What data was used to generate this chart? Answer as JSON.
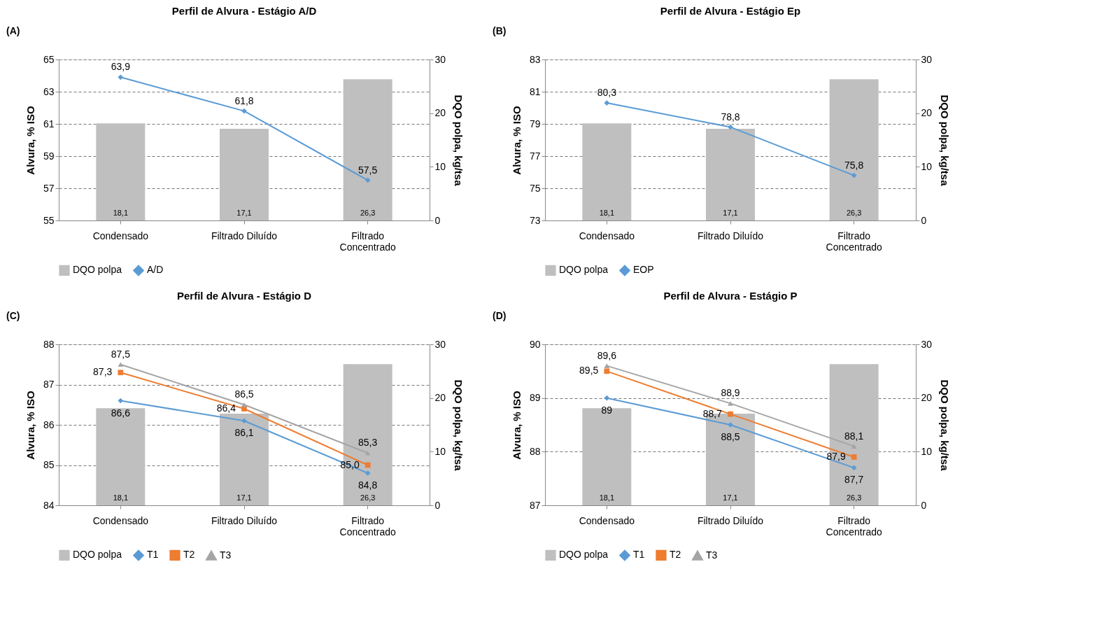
{
  "chart_data": [
    {
      "type": "line",
      "title": "Perfil de Alvura - Estágio A/D",
      "annotations": [
        "(A)"
      ],
      "ylabel": "Alvura, % ISO",
      "y2label": "DQO polpa, kg/tsa",
      "categories": [
        "Condensado",
        "Filtrado Diluído",
        "Filtrado\nConcentrado"
      ],
      "ylim": [
        55,
        65
      ],
      "yticks": [
        55,
        57,
        59,
        61,
        63,
        65
      ],
      "y2lim": [
        0,
        30
      ],
      "y2ticks": [
        0,
        10,
        20,
        30
      ],
      "grid": "y",
      "legend": "bottom",
      "series": [
        {
          "name": "DQO polpa",
          "type": "bar",
          "axis": "y2",
          "color": "#bfbfbf",
          "values": [
            18.1,
            17.1,
            26.3
          ],
          "value_labels": [
            "18,1",
            "17,1",
            "26,3"
          ]
        },
        {
          "name": "A/D",
          "marker": "diamond",
          "color": "#5b9bd5",
          "values": [
            63.9,
            61.8,
            57.5
          ],
          "value_labels": [
            "63,9",
            "61,8",
            "57,5"
          ]
        }
      ]
    },
    {
      "type": "line",
      "title": "Perfil de Alvura - Estágio Ep",
      "annotations": [
        "(B)"
      ],
      "ylabel": "Alvura, % ISO",
      "y2label": "DQO polpa, kg/tsa",
      "categories": [
        "Condensado",
        "Filtrado Diluído",
        "Filtrado\nConcentrado"
      ],
      "ylim": [
        73,
        83
      ],
      "yticks": [
        73,
        75,
        77,
        79,
        81,
        83
      ],
      "y2lim": [
        0,
        30
      ],
      "y2ticks": [
        0,
        10,
        20,
        30
      ],
      "grid": "y",
      "legend": "bottom",
      "series": [
        {
          "name": "DQO polpa",
          "type": "bar",
          "axis": "y2",
          "color": "#bfbfbf",
          "values": [
            18.1,
            17.1,
            26.3
          ],
          "value_labels": [
            "18,1",
            "17,1",
            "26,3"
          ]
        },
        {
          "name": "EOP",
          "marker": "diamond",
          "color": "#5b9bd5",
          "values": [
            80.3,
            78.8,
            75.8
          ],
          "value_labels": [
            "80,3",
            "78,8",
            "75,8"
          ]
        }
      ]
    },
    {
      "type": "line",
      "title": "Perfil de Alvura - Estágio D",
      "annotations": [
        "(C)"
      ],
      "ylabel": "Alvura, % ISO",
      "y2label": "DQO polpa, kg/tsa",
      "categories": [
        "Condensado",
        "Filtrado Diluído",
        "Filtrado\nConcentrado"
      ],
      "ylim": [
        84,
        88
      ],
      "yticks": [
        84,
        85,
        86,
        87,
        88
      ],
      "y2lim": [
        0,
        30
      ],
      "y2ticks": [
        0,
        10,
        20,
        30
      ],
      "grid": "y",
      "legend": "bottom",
      "series": [
        {
          "name": "DQO polpa",
          "type": "bar",
          "axis": "y2",
          "color": "#bfbfbf",
          "values": [
            18.1,
            17.1,
            26.3
          ],
          "value_labels": [
            "18,1",
            "17,1",
            "26,3"
          ]
        },
        {
          "name": "T1",
          "marker": "diamond",
          "color": "#5b9bd5",
          "values": [
            86.6,
            86.1,
            84.8
          ],
          "value_labels": [
            "86,6",
            "86,1",
            "84,8"
          ]
        },
        {
          "name": "T2",
          "marker": "square",
          "color": "#ed7d31",
          "values": [
            87.3,
            86.4,
            85.0
          ],
          "value_labels": [
            "87,3",
            "86,4",
            "85,0"
          ]
        },
        {
          "name": "T3",
          "marker": "triangle",
          "color": "#a5a5a5",
          "values": [
            87.5,
            86.5,
            85.3
          ],
          "value_labels": [
            "87,5",
            "86,5",
            "85,3"
          ]
        }
      ]
    },
    {
      "type": "line",
      "title": "Perfil de Alvura - Estágio P",
      "annotations": [
        "(D)"
      ],
      "ylabel": "Alvura, % ISO",
      "y2label": "DQO polpa, kg/tsa",
      "categories": [
        "Condensado",
        "Filtrado Diluído",
        "Filtrado\nConcentrado"
      ],
      "ylim": [
        87,
        90
      ],
      "yticks": [
        87,
        88,
        89,
        90
      ],
      "y2lim": [
        0,
        30
      ],
      "y2ticks": [
        0,
        10,
        20,
        30
      ],
      "grid": "y",
      "legend": "bottom",
      "series": [
        {
          "name": "DQO polpa",
          "type": "bar",
          "axis": "y2",
          "color": "#bfbfbf",
          "values": [
            18.1,
            17.1,
            26.3
          ],
          "value_labels": [
            "18,1",
            "17,1",
            "26,3"
          ]
        },
        {
          "name": "T1",
          "marker": "diamond",
          "color": "#5b9bd5",
          "values": [
            89.0,
            88.5,
            87.7
          ],
          "value_labels": [
            "89",
            "88,5",
            "87,7"
          ]
        },
        {
          "name": "T2",
          "marker": "square",
          "color": "#ed7d31",
          "values": [
            89.5,
            88.7,
            87.9
          ],
          "value_labels": [
            "89,5",
            "88,7",
            "87,9"
          ]
        },
        {
          "name": "T3",
          "marker": "triangle",
          "color": "#a5a5a5",
          "values": [
            89.6,
            88.9,
            88.1
          ],
          "value_labels": [
            "89,6",
            "88,9",
            "88,1"
          ]
        }
      ]
    }
  ]
}
